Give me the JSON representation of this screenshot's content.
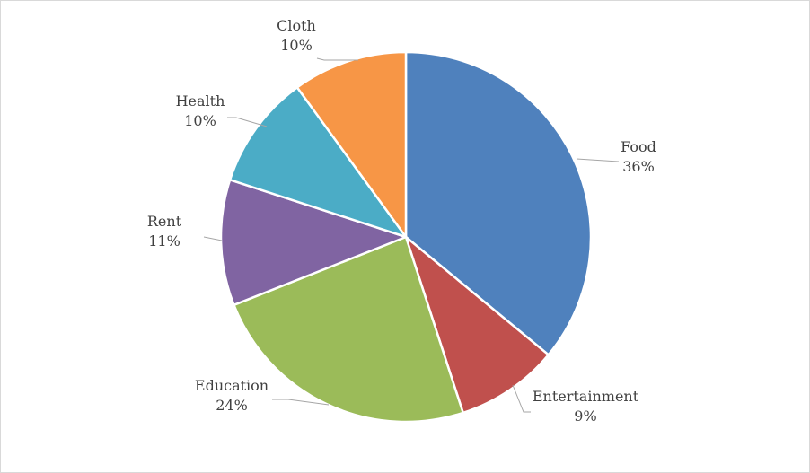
{
  "chart_data": {
    "type": "pie",
    "title": "",
    "unit": "%",
    "slices": [
      {
        "label": "Food",
        "value": 36,
        "pct_label": "36%",
        "color": "#4F81BD"
      },
      {
        "label": "Entertainment",
        "value": 9,
        "pct_label": "9%",
        "color": "#C0504D"
      },
      {
        "label": "Education",
        "value": 24,
        "pct_label": "24%",
        "color": "#9BBB59"
      },
      {
        "label": "Rent",
        "value": 11,
        "pct_label": "11%",
        "color": "#8064A2"
      },
      {
        "label": "Health",
        "value": 10,
        "pct_label": "10%",
        "color": "#4BACC6"
      },
      {
        "label": "Cloth",
        "value": 10,
        "pct_label": "10%",
        "color": "#F79646"
      }
    ],
    "legend": "none",
    "start_angle": "12 o'clock, clockwise"
  }
}
